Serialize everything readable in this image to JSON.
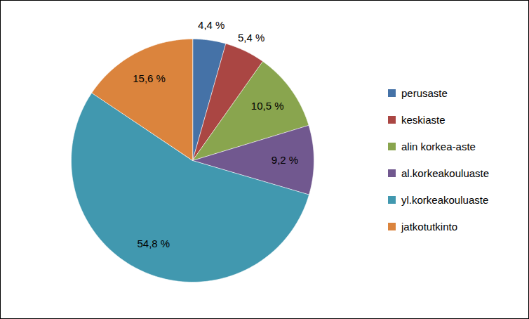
{
  "chart_data": {
    "type": "pie",
    "categories": [
      "perusaste",
      "keskiaste",
      "alin korkea-aste",
      "al.korkeakouluaste",
      "yl.korkeakouluaste",
      "jatkotutkinto"
    ],
    "values": [
      4.4,
      5.4,
      10.5,
      9.2,
      54.8,
      15.6
    ],
    "value_labels": [
      "4,4 %",
      "5,4 %",
      "10,5 %",
      "9,2 %",
      "54,8 %",
      "15,6 %"
    ],
    "colors": [
      "#4572A7",
      "#AA4643",
      "#89A54E",
      "#71588F",
      "#4198AF",
      "#DB843D"
    ],
    "data_labels": true,
    "legend": "right"
  }
}
